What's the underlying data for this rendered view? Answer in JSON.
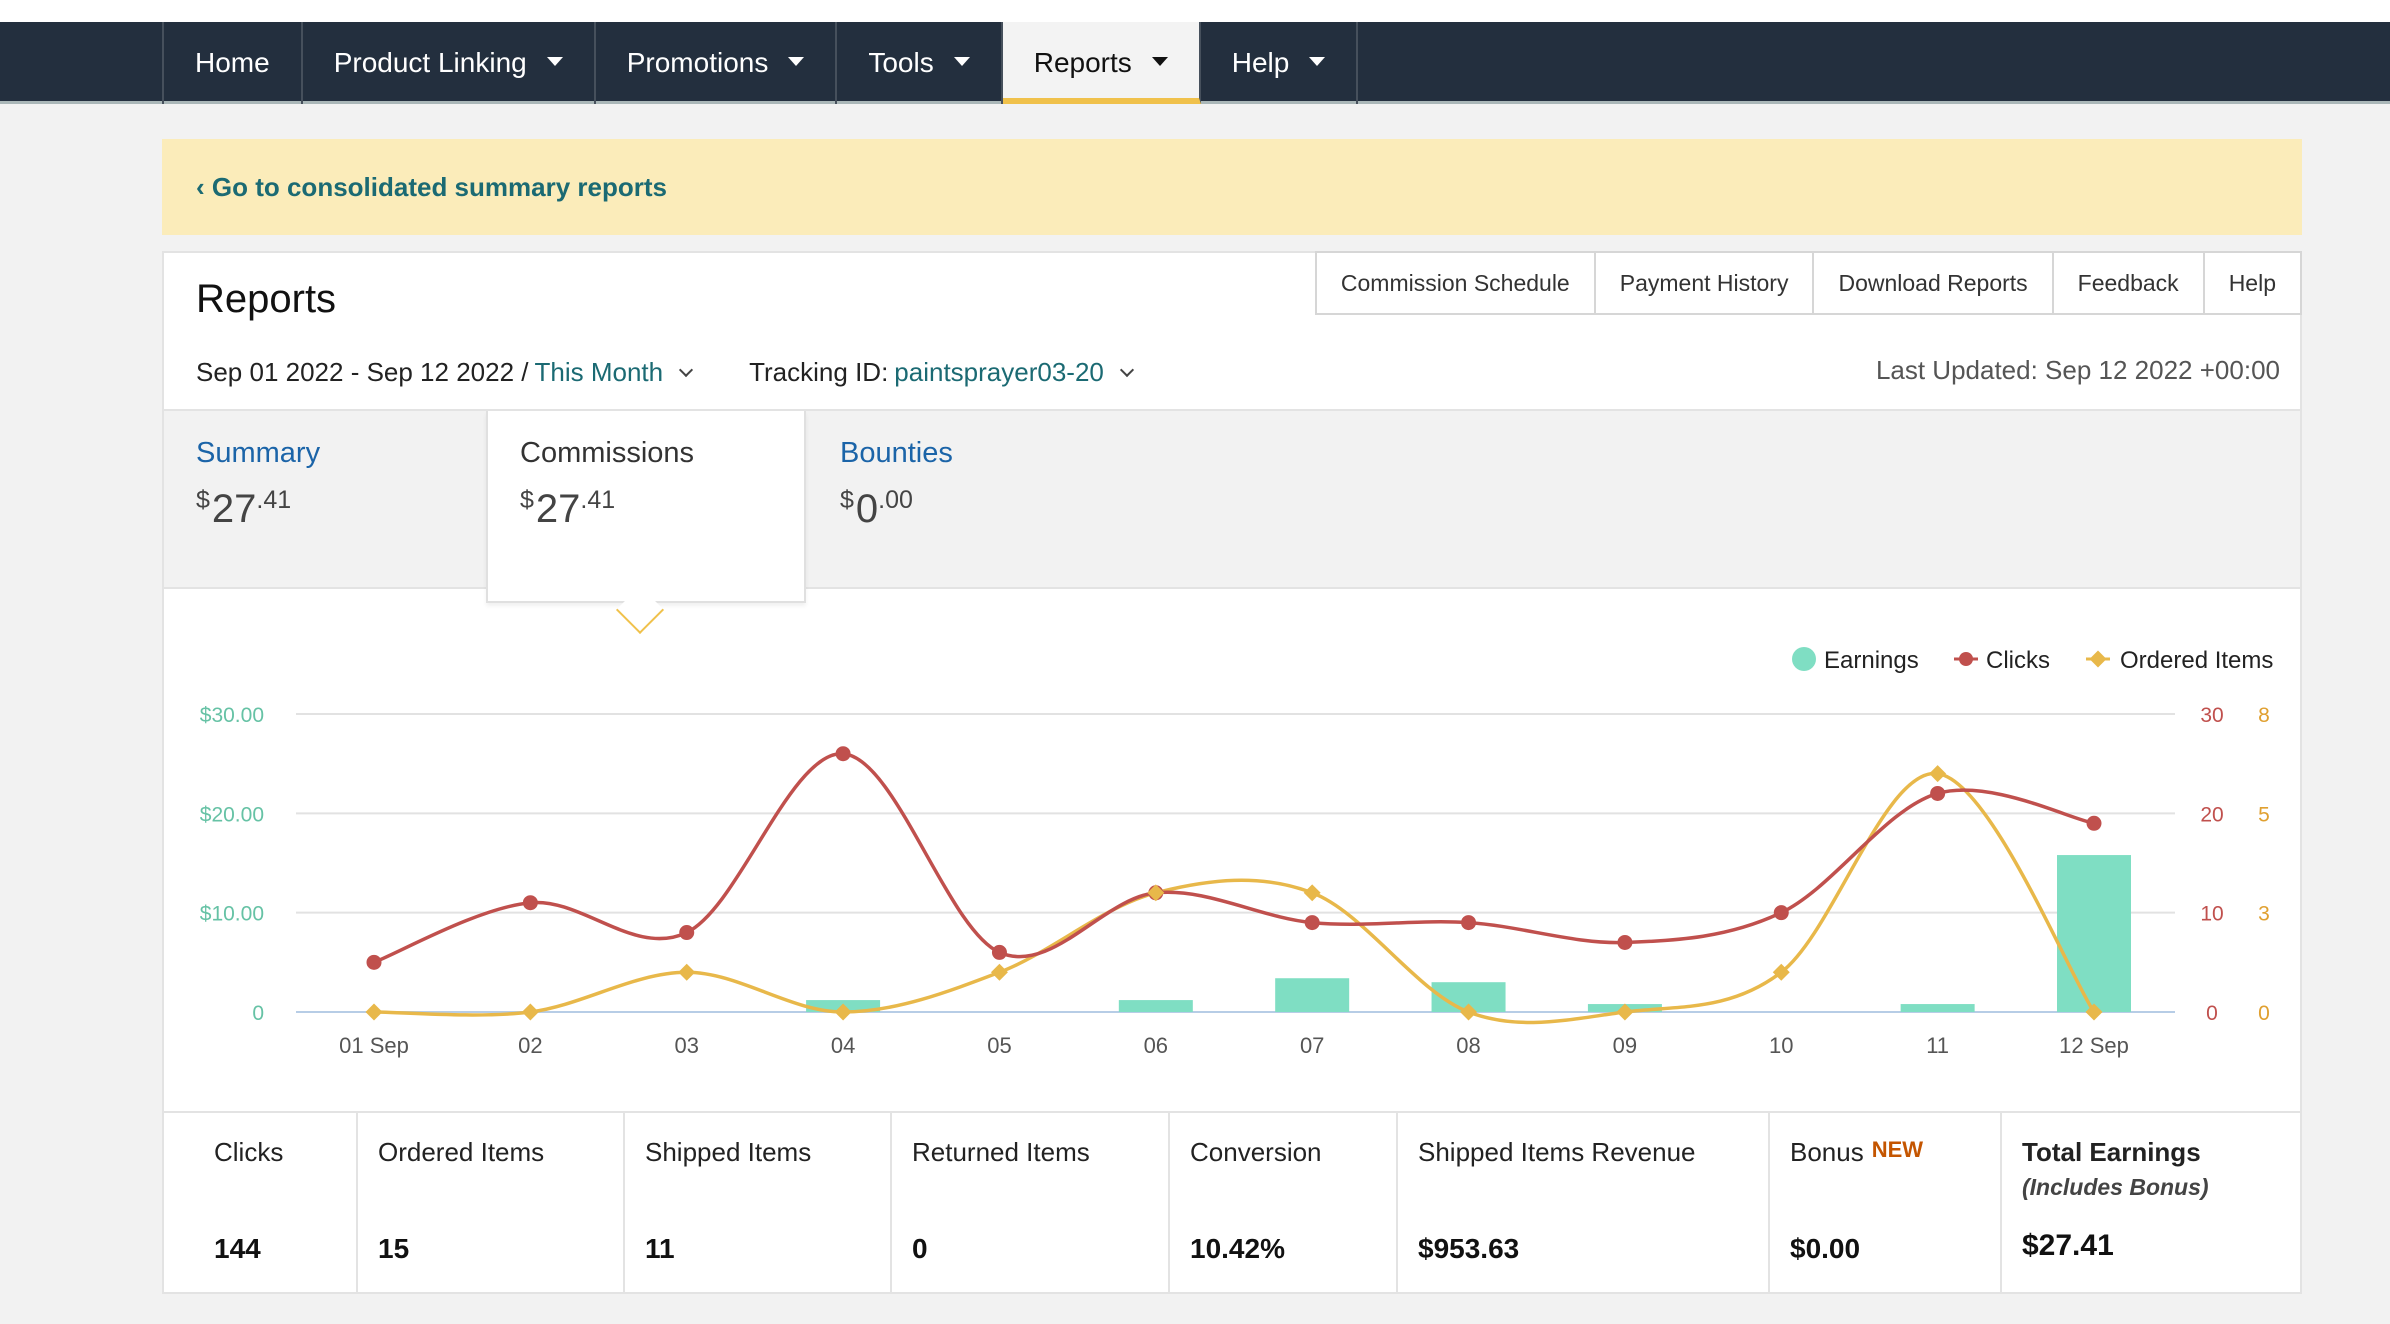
{
  "nav": {
    "items": [
      {
        "label": "Home",
        "caret": false
      },
      {
        "label": "Product Linking",
        "caret": true
      },
      {
        "label": "Promotions",
        "caret": true
      },
      {
        "label": "Tools",
        "caret": true
      },
      {
        "label": "Reports",
        "caret": true,
        "active": true
      },
      {
        "label": "Help",
        "caret": true
      }
    ]
  },
  "banner": {
    "link": "‹ Go to consolidated summary reports"
  },
  "reports": {
    "title": "Reports",
    "buttons": [
      "Commission Schedule",
      "Payment History",
      "Download Reports",
      "Feedback",
      "Help"
    ],
    "date_range": "Sep 01 2022 - Sep 12 2022 /",
    "period": "This Month",
    "tracking_label": "Tracking ID:",
    "tracking_id": "paintsprayer03-20",
    "last_updated": "Last Updated: Sep 12 2022 +00:00"
  },
  "summary_tabs": [
    {
      "label": "Summary",
      "currency": "$",
      "whole": "27",
      "cents": ".41"
    },
    {
      "label": "Commissions",
      "currency": "$",
      "whole": "27",
      "cents": ".41",
      "selected": true
    },
    {
      "label": "Bounties",
      "currency": "$",
      "whole": "0",
      "cents": ".00"
    }
  ],
  "chart_data": {
    "type": "bar+line",
    "categories": [
      "01 Sep",
      "02",
      "03",
      "04",
      "05",
      "06",
      "07",
      "08",
      "09",
      "10",
      "11",
      "12 Sep"
    ],
    "legend": [
      "Earnings",
      "Clicks",
      "Ordered Items"
    ],
    "legend_position": "top-right",
    "series": [
      {
        "name": "Earnings",
        "type": "bar",
        "axis": "left",
        "color": "#7fdec3",
        "values": [
          0,
          0,
          0,
          1.2,
          0,
          1.2,
          3.4,
          3.0,
          0.8,
          0,
          0.8,
          15.8
        ]
      },
      {
        "name": "Clicks",
        "type": "line",
        "axis": "right1",
        "color": "#c0504d",
        "values": [
          5,
          11,
          8,
          26,
          6,
          12,
          9,
          9,
          7,
          10,
          22,
          19
        ]
      },
      {
        "name": "Ordered Items",
        "type": "line",
        "axis": "right2",
        "color": "#e8b84a",
        "values": [
          0,
          0,
          1,
          0,
          1,
          3,
          3,
          0,
          0,
          1,
          6,
          0
        ]
      }
    ],
    "axes": {
      "left": {
        "ticks": [
          "$30.00",
          "$20.00",
          "$10.00",
          "0"
        ],
        "range": [
          0,
          30
        ],
        "color": "#66c2a5"
      },
      "right1": {
        "ticks": [
          "30",
          "20",
          "10",
          "0"
        ],
        "range": [
          0,
          30
        ],
        "color": "#c0504d"
      },
      "right2": {
        "ticks": [
          "8",
          "5",
          "3",
          "0"
        ],
        "range": [
          0,
          7.5
        ],
        "color": "#e0a030"
      }
    },
    "grid": true
  },
  "stats": [
    {
      "label": "Clicks",
      "value": "144"
    },
    {
      "label": "Ordered Items",
      "value": "15"
    },
    {
      "label": "Shipped Items",
      "value": "11"
    },
    {
      "label": "Returned Items",
      "value": "0"
    },
    {
      "label": "Conversion",
      "value": "10.42%"
    },
    {
      "label": "Shipped Items Revenue",
      "value": "$953.63"
    },
    {
      "label": "Bonus",
      "badge": "NEW",
      "value": "$0.00"
    },
    {
      "label": "Total Earnings",
      "sub": "(Includes Bonus)",
      "value": "$27.41",
      "total": true
    }
  ]
}
